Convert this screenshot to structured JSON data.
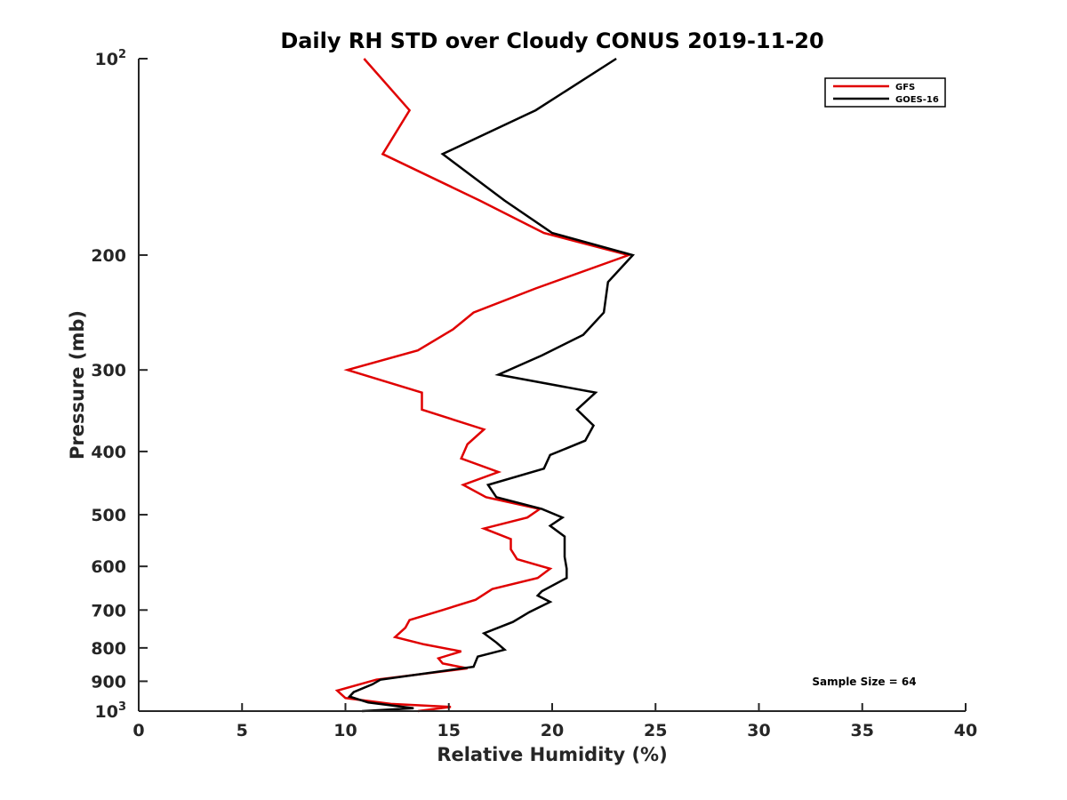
{
  "chart_data": {
    "type": "line",
    "title": "Daily RH STD over Cloudy CONUS 2019-11-20",
    "xlabel": "Relative Humidity (%)",
    "ylabel": "Pressure (mb)",
    "xlim": [
      0,
      40
    ],
    "ylim": [
      100,
      1000
    ],
    "y_scale": "log",
    "y_direction": "reversed",
    "x_ticks": [
      "0",
      "5",
      "10",
      "15",
      "20",
      "25",
      "30",
      "35",
      "40"
    ],
    "y_ticks": [
      {
        "value": 100,
        "base": "10",
        "exp": "2"
      },
      {
        "value": 200,
        "label": "200"
      },
      {
        "value": 300,
        "label": "300"
      },
      {
        "value": 400,
        "label": "400"
      },
      {
        "value": 500,
        "label": "500"
      },
      {
        "value": 600,
        "label": "600"
      },
      {
        "value": 700,
        "label": "700"
      },
      {
        "value": 800,
        "label": "800"
      },
      {
        "value": 900,
        "label": "900"
      },
      {
        "value": 1000,
        "base": "10",
        "exp": "3"
      }
    ],
    "legend_position": "top-right",
    "annotation": "Sample Size = 64",
    "series": [
      {
        "name": "GFS",
        "color": "#e00000",
        "points": [
          [
            10.9,
            100
          ],
          [
            13.1,
            120
          ],
          [
            11.8,
            140
          ],
          [
            16.5,
            165
          ],
          [
            19.6,
            185
          ],
          [
            23.7,
            200
          ],
          [
            19.2,
            225
          ],
          [
            16.2,
            245
          ],
          [
            15.2,
            260
          ],
          [
            13.5,
            280
          ],
          [
            10.1,
            300
          ],
          [
            13.7,
            325
          ],
          [
            13.7,
            345
          ],
          [
            16.7,
            370
          ],
          [
            15.9,
            390
          ],
          [
            15.6,
            410
          ],
          [
            17.4,
            430
          ],
          [
            15.7,
            450
          ],
          [
            16.8,
            470
          ],
          [
            19.4,
            490
          ],
          [
            18.8,
            505
          ],
          [
            16.7,
            525
          ],
          [
            18.0,
            545
          ],
          [
            18.0,
            565
          ],
          [
            18.3,
            585
          ],
          [
            19.9,
            605
          ],
          [
            19.3,
            625
          ],
          [
            17.1,
            650
          ],
          [
            16.3,
            675
          ],
          [
            14.7,
            700
          ],
          [
            13.1,
            725
          ],
          [
            12.9,
            745
          ],
          [
            12.4,
            770
          ],
          [
            13.8,
            790
          ],
          [
            15.6,
            810
          ],
          [
            14.5,
            830
          ],
          [
            14.7,
            845
          ],
          [
            15.9,
            860
          ],
          [
            11.5,
            895
          ],
          [
            9.6,
            930
          ],
          [
            10.0,
            955
          ],
          [
            12.2,
            975
          ],
          [
            15.1,
            985
          ],
          [
            13.5,
            1000
          ]
        ]
      },
      {
        "name": "GOES-16",
        "color": "#000000",
        "points": [
          [
            23.1,
            100
          ],
          [
            19.2,
            120
          ],
          [
            14.7,
            140
          ],
          [
            17.7,
            165
          ],
          [
            20.0,
            185
          ],
          [
            23.9,
            200
          ],
          [
            22.7,
            220
          ],
          [
            22.5,
            245
          ],
          [
            21.5,
            265
          ],
          [
            19.5,
            285
          ],
          [
            17.4,
            305
          ],
          [
            22.1,
            325
          ],
          [
            21.2,
            345
          ],
          [
            22.0,
            365
          ],
          [
            21.6,
            385
          ],
          [
            19.9,
            405
          ],
          [
            19.6,
            425
          ],
          [
            16.9,
            450
          ],
          [
            17.3,
            470
          ],
          [
            19.5,
            490
          ],
          [
            20.5,
            505
          ],
          [
            19.9,
            520
          ],
          [
            20.6,
            540
          ],
          [
            20.6,
            560
          ],
          [
            20.6,
            580
          ],
          [
            20.7,
            605
          ],
          [
            20.7,
            625
          ],
          [
            19.5,
            655
          ],
          [
            19.3,
            665
          ],
          [
            19.9,
            680
          ],
          [
            18.9,
            705
          ],
          [
            18.1,
            730
          ],
          [
            16.7,
            760
          ],
          [
            17.3,
            785
          ],
          [
            17.7,
            805
          ],
          [
            16.4,
            825
          ],
          [
            16.2,
            855
          ],
          [
            11.7,
            895
          ],
          [
            11.3,
            910
          ],
          [
            10.4,
            935
          ],
          [
            10.2,
            950
          ],
          [
            11.1,
            970
          ],
          [
            13.3,
            990
          ],
          [
            10.8,
            1000
          ]
        ]
      }
    ]
  }
}
